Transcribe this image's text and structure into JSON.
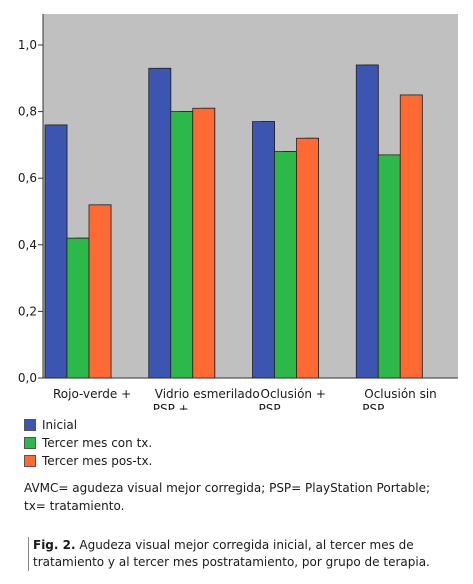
{
  "chart_data": {
    "type": "bar",
    "categories": [
      "Rojo-verde +",
      "Vidrio esmerilado PSP +",
      "Oclusión + PSP",
      "Oclusión sin PSP"
    ],
    "category_label_lines": [
      [
        "Rojo-verde +"
      ],
      [
        "Vidrio esmerilado",
        "PSP +"
      ],
      [
        "Oclusión +",
        "PSP"
      ],
      [
        "Oclusión sin",
        "PSP"
      ]
    ],
    "series": [
      {
        "name": "Inicial",
        "values": [
          0.76,
          0.93,
          0.77,
          0.94
        ],
        "color": "#3b55b0"
      },
      {
        "name": "Tercer mes con tx.",
        "values": [
          0.42,
          0.8,
          0.68,
          0.67
        ],
        "color": "#2db84a"
      },
      {
        "name": "Tercer mes pos-tx.",
        "values": [
          0.52,
          0.81,
          0.72,
          0.85
        ],
        "color": "#ff6a33"
      }
    ],
    "yticks": [
      "0,0",
      "0,2",
      "0,4",
      "0,6",
      "0,8",
      "1,0"
    ],
    "ylim": [
      0,
      1.0
    ],
    "grid": false,
    "plot_background": "#c0c0c0",
    "legend_position": "bottom-left",
    "title": "",
    "xlabel": "",
    "ylabel": ""
  },
  "legend": {
    "items": [
      {
        "label": "Inicial",
        "color": "#3b55b0"
      },
      {
        "label": "Tercer mes con tx.",
        "color": "#2db84a"
      },
      {
        "label": "Tercer mes pos-tx.",
        "color": "#ff6a33"
      }
    ]
  },
  "notes": {
    "text": "AVMC= agudeza visual mejor corregida; PSP= PlayStation Portable; tx= tratamiento."
  },
  "caption": {
    "label": "Fig. 2.",
    "text": " Agudeza visual mejor corregida inicial, al tercer mes de tratamiento y al tercer mes postratamiento, por grupo de terapia."
  }
}
